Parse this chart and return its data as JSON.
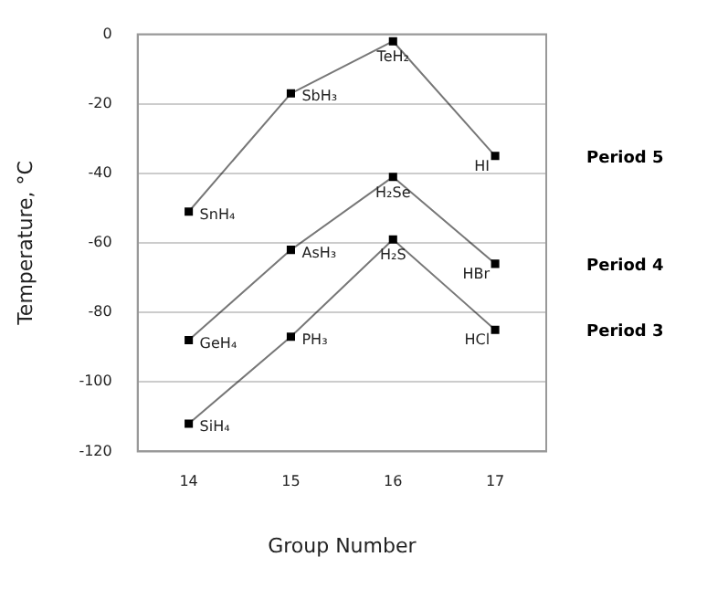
{
  "chart_data": {
    "type": "line",
    "xlabel": "Group Number",
    "ylabel": "Temperature, °C",
    "categories": [
      "14",
      "15",
      "16",
      "17"
    ],
    "series": [
      {
        "name": "Period 5",
        "color": "#000000",
        "values": [
          -51,
          -17,
          -2,
          -35
        ]
      },
      {
        "name": "Period 4",
        "color": "#000000",
        "values": [
          -88,
          -62,
          -41,
          -66
        ]
      },
      {
        "name": "Period 3",
        "color": "#000000",
        "values": [
          -112,
          -87,
          -59,
          -85
        ]
      }
    ],
    "ylim": [
      -120,
      0
    ],
    "yticks": [
      -120,
      -100,
      -80,
      -60,
      -40,
      -20,
      0
    ],
    "grid": "y",
    "legend": false,
    "marker": "square",
    "line_style": "solid",
    "annotations": [
      {
        "text": "SnH₄",
        "x": "14",
        "y": -51
      },
      {
        "text": "SbH₃",
        "x": "15",
        "y": -17
      },
      {
        "text": "TeH₂",
        "x": "16",
        "y": -2
      },
      {
        "text": "HI",
        "x": "17",
        "y": -35
      },
      {
        "text": "GeH₄",
        "x": "14",
        "y": -88
      },
      {
        "text": "AsH₃",
        "x": "15",
        "y": -62
      },
      {
        "text": "H₂Se",
        "x": "16",
        "y": -41
      },
      {
        "text": "HBr",
        "x": "17",
        "y": -66
      },
      {
        "text": "SiH₄",
        "x": "14",
        "y": -112
      },
      {
        "text": "PH₃",
        "x": "15",
        "y": -87
      },
      {
        "text": "H₂S",
        "x": "16",
        "y": -59
      },
      {
        "text": "HCl",
        "x": "17",
        "y": -85
      }
    ]
  }
}
